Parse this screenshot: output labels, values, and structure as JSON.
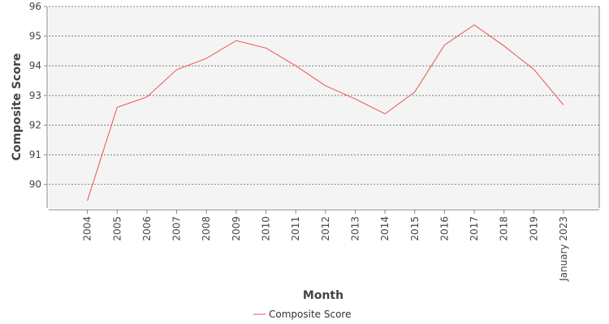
{
  "chart_data": {
    "type": "line",
    "title": "",
    "xlabel": "Month",
    "ylabel": "Composite Score",
    "categories": [
      "2004",
      "2005",
      "2006",
      "2007",
      "2008",
      "2009",
      "2010",
      "2011",
      "2012",
      "2013",
      "2014",
      "2015",
      "2016",
      "2017",
      "2018",
      "2019",
      "January 2023"
    ],
    "series": [
      {
        "name": "Composite Score",
        "color": "#f05050",
        "values": [
          89.45,
          92.6,
          92.95,
          93.87,
          94.25,
          94.85,
          94.6,
          94.0,
          93.33,
          92.88,
          92.38,
          93.12,
          94.7,
          95.38,
          94.67,
          93.88,
          92.68
        ]
      }
    ],
    "ylim": [
      89.2,
      96
    ],
    "yticks": [
      90,
      91,
      92,
      93,
      94,
      95,
      96
    ],
    "grid": true,
    "legend_position": "bottom-center",
    "plot_background": "#f4f4f4"
  }
}
